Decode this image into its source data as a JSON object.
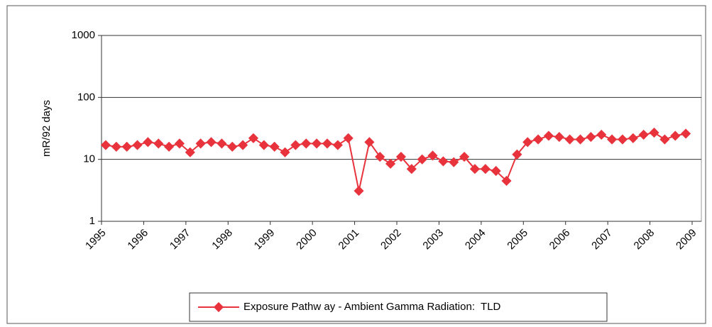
{
  "chart_data": {
    "type": "line",
    "y_label": "mR/92 days",
    "x": [
      1995.1,
      1995.35,
      1995.6,
      1995.85,
      1996.1,
      1996.35,
      1996.6,
      1996.85,
      1997.1,
      1997.35,
      1997.6,
      1997.85,
      1998.1,
      1998.35,
      1998.6,
      1998.85,
      1999.1,
      1999.35,
      1999.6,
      1999.85,
      2000.1,
      2000.35,
      2000.6,
      2000.85,
      2001.1,
      2001.35,
      2001.6,
      2001.85,
      2002.1,
      2002.35,
      2002.6,
      2002.85,
      2003.1,
      2003.35,
      2003.6,
      2003.85,
      2004.1,
      2004.35,
      2004.6,
      2004.85,
      2005.1,
      2005.35,
      2005.6,
      2005.85,
      2006.1,
      2006.35,
      2006.6,
      2006.85,
      2007.1,
      2007.35,
      2007.6,
      2007.85,
      2008.1,
      2008.35,
      2008.6,
      2008.85
    ],
    "series": [
      {
        "name": "Exposure Pathw ay - Ambient Gamma Radiation:  TLD",
        "color": "#e8323c",
        "values": [
          17,
          16,
          16,
          17,
          19,
          18,
          16,
          18,
          13,
          18,
          19,
          18,
          16,
          17,
          22,
          17,
          16,
          13,
          17,
          18,
          18,
          18,
          17,
          22,
          3.1,
          19,
          11,
          8.5,
          11,
          7,
          10,
          11.5,
          9.3,
          9,
          11,
          7,
          7,
          6.5,
          4.5,
          12,
          19,
          21,
          24,
          23,
          21,
          21,
          23,
          25,
          21,
          21,
          22,
          25,
          27,
          21,
          24,
          26
        ]
      }
    ],
    "xlim": [
      1995,
      2009
    ],
    "xticks": [
      1995,
      1996,
      1997,
      1998,
      1999,
      2000,
      2001,
      2002,
      2003,
      2004,
      2005,
      2006,
      2007,
      2008,
      2009
    ],
    "ylim": [
      1,
      1000
    ],
    "yticks": [
      1,
      10,
      100,
      1000
    ],
    "log_y": true,
    "grid": true,
    "legend": "bottom"
  }
}
